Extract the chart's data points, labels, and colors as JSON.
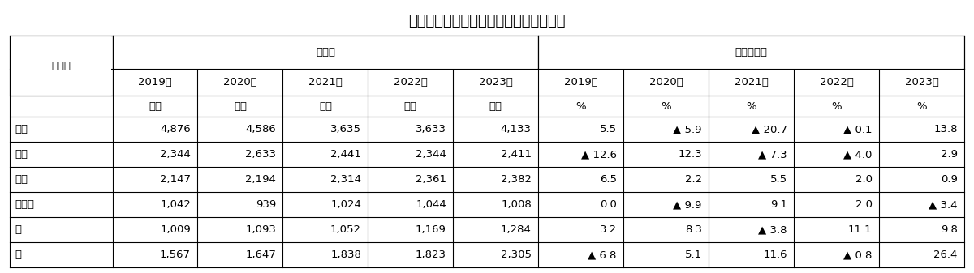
{
  "title": "主要部門別の農業産出額の推移（東北）",
  "col_header_row2": [
    "",
    "2019年",
    "2020年",
    "2021年",
    "2022年",
    "2023年",
    "2019年",
    "2020年",
    "2021年",
    "2022年",
    "2023年"
  ],
  "unit_row": [
    "",
    "億円",
    "億円",
    "億円",
    "億円",
    "億円",
    "%",
    "%",
    "%",
    "%",
    "%"
  ],
  "rows": [
    [
      "コメ",
      "4,876",
      "4,586",
      "3,635",
      "3,633",
      "4,133",
      "5.5",
      "▲ 5.9",
      "▲ 20.7",
      "▲ 0.1",
      "13.8"
    ],
    [
      "野菜",
      "2,344",
      "2,633",
      "2,441",
      "2,344",
      "2,411",
      "▲ 12.6",
      "12.3",
      "▲ 7.3",
      "▲ 4.0",
      "2.9"
    ],
    [
      "果実",
      "2,147",
      "2,194",
      "2,314",
      "2,361",
      "2,382",
      "6.5",
      "2.2",
      "5.5",
      "2.0",
      "0.9"
    ],
    [
      "肉用牛",
      "1,042",
      "939",
      "1,024",
      "1,044",
      "1,008",
      "0.0",
      "▲ 9.9",
      "9.1",
      "2.0",
      "▲ 3.4"
    ],
    [
      "豚",
      "1,009",
      "1,093",
      "1,052",
      "1,169",
      "1,284",
      "3.2",
      "8.3",
      "▲ 3.8",
      "11.1",
      "9.8"
    ],
    [
      "鶏",
      "1,567",
      "1,647",
      "1,838",
      "1,823",
      "2,305",
      "▲ 6.8",
      "5.1",
      "11.6",
      "▲ 0.8",
      "26.4"
    ]
  ],
  "background_color": "#ffffff",
  "title_fontsize": 13,
  "body_fontsize": 9.5,
  "header_fontsize": 9.5
}
